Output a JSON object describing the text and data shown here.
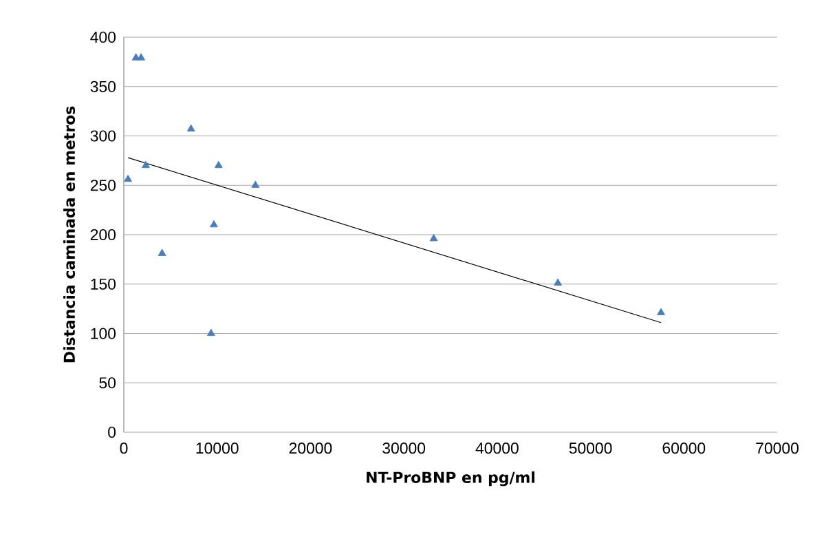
{
  "chart_data": {
    "type": "scatter",
    "xlabel": "NT-ProBNP en pg/ml",
    "ylabel": "Distancia caminada  en metros",
    "xlim": [
      0,
      70000
    ],
    "xticks": [
      0,
      10000,
      20000,
      30000,
      40000,
      50000,
      60000,
      70000
    ],
    "ylim": [
      0,
      400
    ],
    "yticks": [
      0,
      50,
      100,
      150,
      200,
      250,
      300,
      350,
      400
    ],
    "grid": "y",
    "marker": "triangle",
    "series": [
      {
        "type": "scatter",
        "color": "#4a7ebb",
        "x": [
          450,
          1300,
          1850,
          2350,
          4100,
          7200,
          9350,
          9650,
          10150,
          14100,
          33200,
          46500,
          57550
        ],
        "values": [
          256,
          379,
          379,
          270,
          181,
          307,
          100,
          210,
          270,
          250,
          196,
          151,
          121
        ]
      },
      {
        "type": "line",
        "color": "#000000",
        "marker": "none",
        "x": [
          450,
          57550
        ],
        "values": [
          278,
          111
        ]
      }
    ]
  }
}
